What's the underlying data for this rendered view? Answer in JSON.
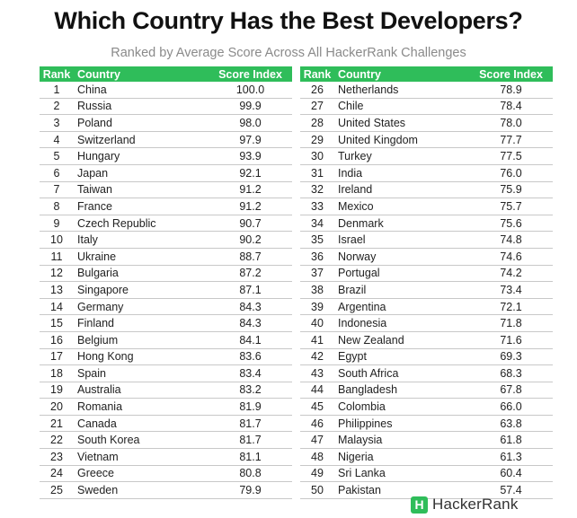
{
  "title": "Which Country Has the Best Developers?",
  "subtitle": "Ranked by Average Score Across All HackerRank Challenges",
  "headers": {
    "rank": "Rank",
    "country": "Country",
    "score": "Score Index"
  },
  "colors": {
    "header_green": "#2fbd5a"
  },
  "left_rows": [
    {
      "rank": "1",
      "country": "China",
      "score": "100.0"
    },
    {
      "rank": "2",
      "country": "Russia",
      "score": "99.9"
    },
    {
      "rank": "3",
      "country": "Poland",
      "score": "98.0"
    },
    {
      "rank": "4",
      "country": "Switzerland",
      "score": "97.9"
    },
    {
      "rank": "5",
      "country": "Hungary",
      "score": "93.9"
    },
    {
      "rank": "6",
      "country": "Japan",
      "score": "92.1"
    },
    {
      "rank": "7",
      "country": "Taiwan",
      "score": "91.2"
    },
    {
      "rank": "8",
      "country": "France",
      "score": "91.2"
    },
    {
      "rank": "9",
      "country": "Czech Republic",
      "score": "90.7"
    },
    {
      "rank": "10",
      "country": "Italy",
      "score": "90.2"
    },
    {
      "rank": "11",
      "country": "Ukraine",
      "score": "88.7"
    },
    {
      "rank": "12",
      "country": "Bulgaria",
      "score": "87.2"
    },
    {
      "rank": "13",
      "country": "Singapore",
      "score": "87.1"
    },
    {
      "rank": "14",
      "country": "Germany",
      "score": "84.3"
    },
    {
      "rank": "15",
      "country": "Finland",
      "score": "84.3"
    },
    {
      "rank": "16",
      "country": "Belgium",
      "score": "84.1"
    },
    {
      "rank": "17",
      "country": "Hong Kong",
      "score": "83.6"
    },
    {
      "rank": "18",
      "country": "Spain",
      "score": "83.4"
    },
    {
      "rank": "19",
      "country": "Australia",
      "score": "83.2"
    },
    {
      "rank": "20",
      "country": "Romania",
      "score": "81.9"
    },
    {
      "rank": "21",
      "country": "Canada",
      "score": "81.7"
    },
    {
      "rank": "22",
      "country": "South Korea",
      "score": "81.7"
    },
    {
      "rank": "23",
      "country": "Vietnam",
      "score": "81.1"
    },
    {
      "rank": "24",
      "country": "Greece",
      "score": "80.8"
    },
    {
      "rank": "25",
      "country": "Sweden",
      "score": "79.9"
    }
  ],
  "right_rows": [
    {
      "rank": "26",
      "country": "Netherlands",
      "score": "78.9"
    },
    {
      "rank": "27",
      "country": "Chile",
      "score": "78.4"
    },
    {
      "rank": "28",
      "country": "United States",
      "score": "78.0"
    },
    {
      "rank": "29",
      "country": "United Kingdom",
      "score": "77.7"
    },
    {
      "rank": "30",
      "country": "Turkey",
      "score": "77.5"
    },
    {
      "rank": "31",
      "country": "India",
      "score": "76.0"
    },
    {
      "rank": "32",
      "country": "Ireland",
      "score": "75.9"
    },
    {
      "rank": "33",
      "country": "Mexico",
      "score": "75.7"
    },
    {
      "rank": "34",
      "country": "Denmark",
      "score": "75.6"
    },
    {
      "rank": "35",
      "country": "Israel",
      "score": "74.8"
    },
    {
      "rank": "36",
      "country": "Norway",
      "score": "74.6"
    },
    {
      "rank": "37",
      "country": "Portugal",
      "score": "74.2"
    },
    {
      "rank": "38",
      "country": "Brazil",
      "score": "73.4"
    },
    {
      "rank": "39",
      "country": "Argentina",
      "score": "72.1"
    },
    {
      "rank": "40",
      "country": "Indonesia",
      "score": "71.8"
    },
    {
      "rank": "41",
      "country": "New Zealand",
      "score": "71.6"
    },
    {
      "rank": "42",
      "country": "Egypt",
      "score": "69.3"
    },
    {
      "rank": "43",
      "country": "South Africa",
      "score": "68.3"
    },
    {
      "rank": "44",
      "country": "Bangladesh",
      "score": "67.8"
    },
    {
      "rank": "45",
      "country": "Colombia",
      "score": "66.0"
    },
    {
      "rank": "46",
      "country": "Philippines",
      "score": "63.8"
    },
    {
      "rank": "47",
      "country": "Malaysia",
      "score": "61.8"
    },
    {
      "rank": "48",
      "country": "Nigeria",
      "score": "61.3"
    },
    {
      "rank": "49",
      "country": "Sri Lanka",
      "score": "60.4"
    },
    {
      "rank": "50",
      "country": "Pakistan",
      "score": "57.4"
    }
  ],
  "logo": {
    "mark": "H",
    "text": "HackerRank",
    "icon": "hackerrank-logo-icon"
  }
}
